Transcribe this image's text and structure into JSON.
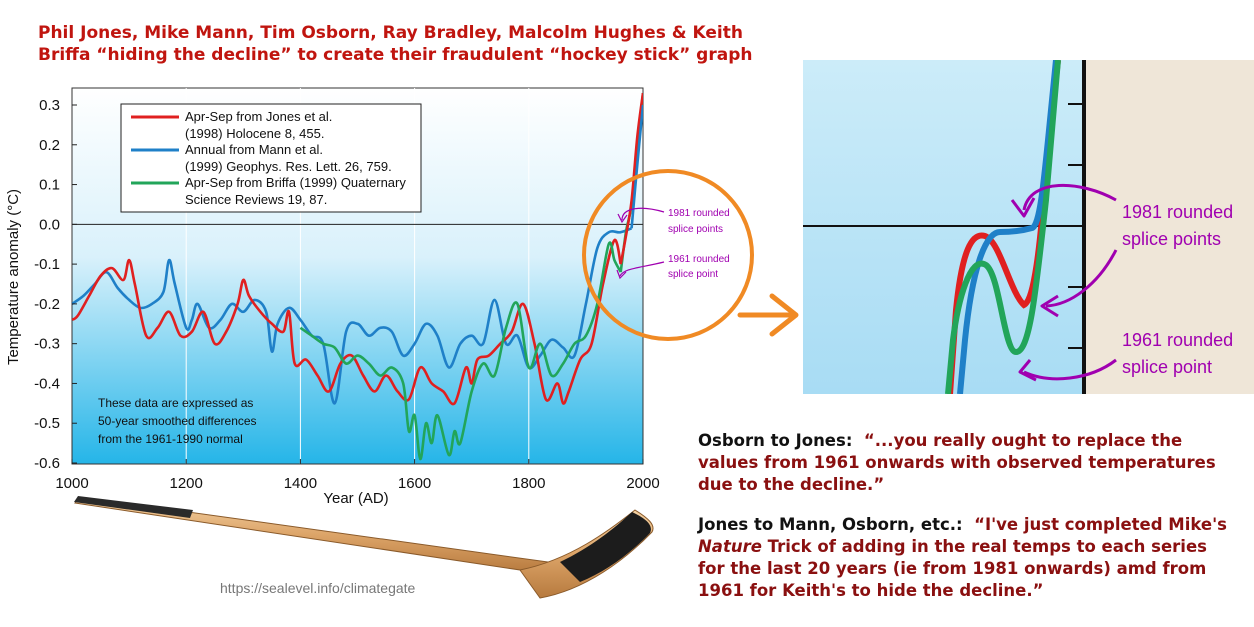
{
  "title": "Phil Jones, Mike Mann, Tim Osborn, Ray Bradley, Malcolm Hughes & Keith Briffa “hiding the decline” to create their fraudulent “hockey stick” graph",
  "chart_data": {
    "type": "line",
    "xlabel": "Year (AD)",
    "ylabel": "Temperature anomaly (°C)",
    "xlim": [
      1000,
      2000
    ],
    "ylim": [
      -0.6,
      0.35
    ],
    "x_ticks": [
      "1000",
      "1200",
      "1400",
      "1600",
      "1800",
      "2000"
    ],
    "y_ticks": [
      "0.3",
      "0.2",
      "0.1",
      "0.0",
      "-0.1",
      "-0.2",
      "-0.3",
      "-0.4",
      "-0.5",
      "-0.6"
    ],
    "grid": true,
    "legend_position": "top-left",
    "legend": [
      {
        "line1": "Apr-Sep from Jones et al.",
        "line2": "(1998) Holocene 8, 455.",
        "color": "#e02020"
      },
      {
        "line1": "Annual from Mann et al.",
        "line2": "(1999) Geophys. Res. Lett. 26, 759.",
        "color": "#1f80c8"
      },
      {
        "line1": "Apr-Sep from Briffa (1999) Quaternary",
        "line2": "Science Reviews 19, 87.",
        "color": "#22a55a"
      }
    ],
    "note": [
      "These data are expressed as",
      "50-year smoothed differences",
      "from the 1961-1990 normal"
    ],
    "series": [
      {
        "color": "#1f80c8",
        "x": [
          1000,
          1020,
          1040,
          1060,
          1080,
          1100,
          1120,
          1140,
          1160,
          1170,
          1180,
          1200,
          1210,
          1220,
          1240,
          1260,
          1280,
          1300,
          1320,
          1340,
          1350,
          1360,
          1380,
          1400,
          1420,
          1440,
          1460,
          1480,
          1500,
          1520,
          1540,
          1560,
          1580,
          1600,
          1620,
          1640,
          1660,
          1680,
          1700,
          1720,
          1740,
          1760,
          1780,
          1800,
          1820,
          1840,
          1860,
          1880,
          1900,
          1920,
          1940,
          1960,
          1980
        ],
        "y": [
          -0.2,
          -0.18,
          -0.15,
          -0.12,
          -0.16,
          -0.19,
          -0.21,
          -0.2,
          -0.17,
          -0.09,
          -0.15,
          -0.26,
          -0.24,
          -0.2,
          -0.26,
          -0.24,
          -0.2,
          -0.22,
          -0.19,
          -0.22,
          -0.32,
          -0.25,
          -0.21,
          -0.24,
          -0.28,
          -0.3,
          -0.45,
          -0.27,
          -0.25,
          -0.28,
          -0.26,
          -0.27,
          -0.33,
          -0.3,
          -0.25,
          -0.28,
          -0.36,
          -0.3,
          -0.28,
          -0.3,
          -0.19,
          -0.3,
          -0.28,
          -0.36,
          -0.33,
          -0.29,
          -0.31,
          -0.33,
          -0.2,
          -0.06,
          -0.02,
          -0.02,
          -0.01
        ]
      },
      {
        "color": "#e02020",
        "x": [
          1000,
          1010,
          1030,
          1050,
          1070,
          1090,
          1100,
          1110,
          1130,
          1150,
          1170,
          1190,
          1210,
          1230,
          1250,
          1270,
          1290,
          1300,
          1310,
          1330,
          1350,
          1370,
          1380,
          1390,
          1410,
          1430,
          1450,
          1470,
          1490,
          1510,
          1530,
          1550,
          1570,
          1590,
          1610,
          1630,
          1650,
          1670,
          1690,
          1700,
          1710,
          1730,
          1750,
          1770,
          1790,
          1810,
          1830,
          1850,
          1860,
          1870,
          1890,
          1910,
          1930,
          1950,
          1961
        ],
        "y": [
          -0.24,
          -0.23,
          -0.18,
          -0.13,
          -0.11,
          -0.14,
          -0.09,
          -0.15,
          -0.28,
          -0.26,
          -0.22,
          -0.28,
          -0.27,
          -0.22,
          -0.3,
          -0.27,
          -0.2,
          -0.14,
          -0.18,
          -0.22,
          -0.25,
          -0.27,
          -0.22,
          -0.35,
          -0.34,
          -0.38,
          -0.42,
          -0.35,
          -0.33,
          -0.38,
          -0.42,
          -0.38,
          -0.42,
          -0.44,
          -0.36,
          -0.4,
          -0.42,
          -0.45,
          -0.36,
          -0.4,
          -0.34,
          -0.33,
          -0.3,
          -0.27,
          -0.2,
          -0.3,
          -0.44,
          -0.4,
          -0.45,
          -0.42,
          -0.34,
          -0.3,
          -0.15,
          -0.04,
          -0.1
        ]
      },
      {
        "color": "#22a55a",
        "x": [
          1400,
          1420,
          1440,
          1460,
          1480,
          1500,
          1520,
          1540,
          1560,
          1580,
          1590,
          1600,
          1610,
          1620,
          1630,
          1640,
          1660,
          1670,
          1680,
          1700,
          1720,
          1740,
          1760,
          1780,
          1800,
          1820,
          1840,
          1860,
          1880,
          1900,
          1920,
          1940,
          1950,
          1961
        ],
        "y": [
          -0.26,
          -0.28,
          -0.3,
          -0.31,
          -0.35,
          -0.33,
          -0.35,
          -0.38,
          -0.36,
          -0.4,
          -0.52,
          -0.48,
          -0.59,
          -0.5,
          -0.55,
          -0.48,
          -0.58,
          -0.52,
          -0.55,
          -0.42,
          -0.35,
          -0.38,
          -0.26,
          -0.2,
          -0.36,
          -0.3,
          -0.38,
          -0.35,
          -0.3,
          -0.28,
          -0.2,
          -0.05,
          -0.09,
          -0.12
        ]
      }
    ],
    "spliced_series": [
      {
        "color": "#22a55a",
        "x": [
          1961,
          1970,
          1980,
          1990,
          2000
        ],
        "y": [
          -0.12,
          -0.02,
          0.05,
          0.2,
          0.33
        ]
      },
      {
        "color": "#e02020",
        "x": [
          1961,
          1970,
          1980,
          1990,
          2000
        ],
        "y": [
          -0.1,
          -0.03,
          0.06,
          0.22,
          0.33
        ]
      },
      {
        "color": "#1f80c8",
        "x": [
          1980,
          1990,
          2000
        ],
        "y": [
          -0.01,
          0.15,
          0.3
        ]
      }
    ]
  },
  "annotations": {
    "splice_1981": [
      "1981 rounded",
      "splice points"
    ],
    "splice_1961": [
      "1961 rounded",
      "splice point"
    ]
  },
  "source_url": "https://sealevel.info/climategate",
  "quotes": [
    {
      "speaker": "Osborn to Jones:",
      "pre": "“...you really ought to replace the values from 1961 onwards with observed temperatures due to the decline.”",
      "italic": "",
      "post": ""
    },
    {
      "speaker": "Jones to Mann, Osborn, etc.:",
      "pre": "“I've just completed Mike's ",
      "italic": "Nature",
      "post": " Trick of adding in the real temps to each series for the last 20 years (ie from 1981 onwards) amd from 1961 for Keith's to hide the decline.”"
    }
  ]
}
